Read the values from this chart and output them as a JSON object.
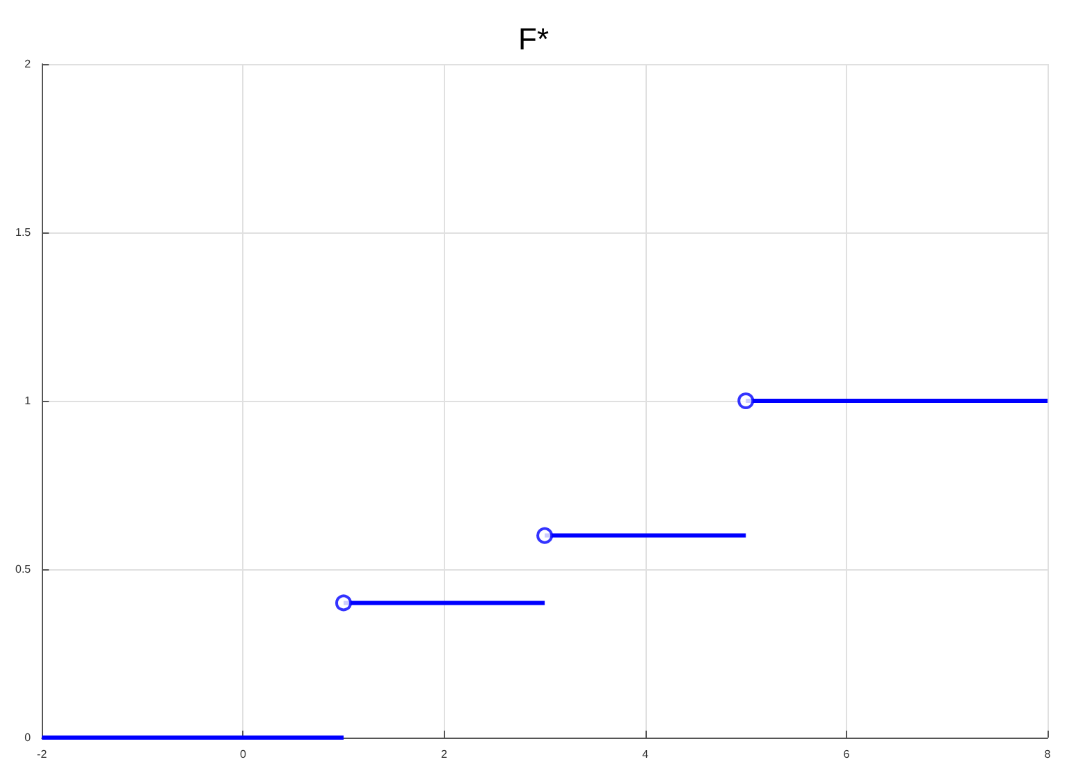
{
  "chart_data": {
    "type": "line",
    "title": "F*",
    "series": [
      {
        "type": "line",
        "color": "#0000ff",
        "x": [
          -2,
          1
        ],
        "values": [
          0,
          0
        ],
        "marker": "none"
      },
      {
        "type": "line",
        "color": "#0000ff",
        "x": [
          1,
          3
        ],
        "values": [
          0.4,
          0.4
        ],
        "marker": "none"
      },
      {
        "type": "line",
        "color": "#0000ff",
        "x": [
          3,
          5
        ],
        "values": [
          0.6,
          0.6
        ],
        "marker": "none"
      },
      {
        "type": "line",
        "color": "#0000ff",
        "x": [
          5,
          8
        ],
        "values": [
          1,
          1
        ],
        "marker": "none"
      },
      {
        "type": "scatter",
        "color": "#0000ff",
        "x": [
          1,
          3,
          5
        ],
        "values": [
          0.4,
          0.6,
          1
        ],
        "marker": "circle"
      }
    ],
    "xlim": [
      -2,
      8
    ],
    "xticks": [
      -2,
      0,
      2,
      4,
      6,
      8
    ],
    "ylim": [
      0,
      2
    ],
    "yticks": [
      0,
      0.5,
      1,
      1.5,
      2
    ],
    "grid": true,
    "line_style": "solid"
  }
}
